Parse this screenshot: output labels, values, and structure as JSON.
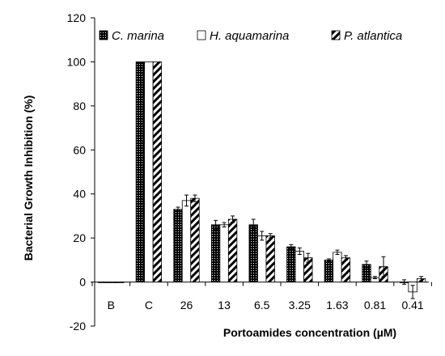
{
  "chart_data": {
    "type": "bar",
    "xlabel": "Portoamides concentration (µM)",
    "ylabel": "Bacterial Growth Inhibition (%)",
    "ylim": [
      -20,
      120
    ],
    "yticks": [
      -20,
      0,
      20,
      40,
      60,
      80,
      100,
      120
    ],
    "categories": [
      "B",
      "C",
      "26",
      "13",
      "6.5",
      "3.25",
      "1.63",
      "0.81",
      "0.41"
    ],
    "legend_position": "top",
    "grid": false,
    "series": [
      {
        "name": "C. marina",
        "pattern": "dotted-black",
        "values": [
          0,
          100,
          33,
          26,
          26,
          16,
          10,
          8,
          0
        ],
        "errors": [
          0,
          0,
          1,
          2,
          2.5,
          1,
          0.5,
          1.5,
          1
        ]
      },
      {
        "name": "H. aquamarina",
        "pattern": "white",
        "values": [
          0,
          100,
          37,
          26,
          21,
          14,
          13.5,
          2,
          -4.5
        ],
        "errors": [
          0,
          0,
          2.5,
          1,
          2,
          1.5,
          1,
          0.5,
          3
        ]
      },
      {
        "name": "P. atlantica",
        "pattern": "diagonal-hatch",
        "values": [
          0,
          100,
          38,
          28.5,
          21,
          11,
          11,
          7,
          1.5
        ],
        "errors": [
          0,
          0,
          1.5,
          1.5,
          1,
          2,
          1,
          4.5,
          1
        ]
      }
    ]
  }
}
